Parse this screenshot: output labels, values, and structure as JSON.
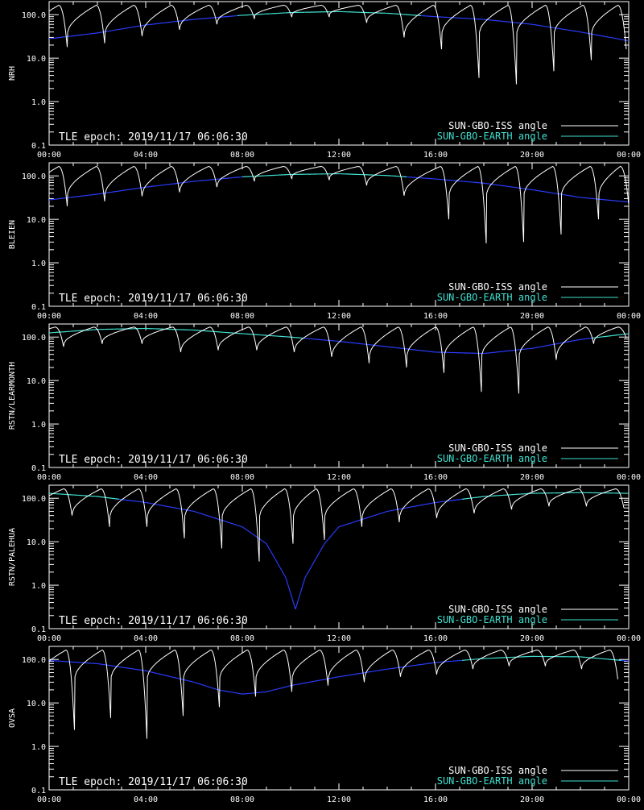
{
  "chart_data": [
    {
      "type": "line",
      "station": "NRH",
      "xlabel_ticks": [
        "00:00",
        "04:00",
        "08:00",
        "12:00",
        "16:00",
        "20:00",
        "00:00"
      ],
      "yticks": [
        "100.0",
        "10.0",
        "1.0",
        "0.1"
      ],
      "ylim": [
        0.1,
        200
      ],
      "yscale": "log",
      "epoch": "TLE epoch: 2019/11/17 06:06:30",
      "legend": [
        "SUN-GBO-ISS angle",
        "SUN-GBO-EARTH angle"
      ],
      "series": [
        {
          "name": "SUN-GBO-EARTH angle",
          "x": [
            0,
            2,
            4,
            6,
            8,
            10,
            12,
            14,
            16,
            18,
            20,
            22,
            24
          ],
          "y": [
            28,
            38,
            58,
            78,
            97,
            112,
            118,
            108,
            90,
            78,
            60,
            40,
            25
          ]
        },
        {
          "name": "SUN-GBO-ISS angle",
          "orbits": [
            {
              "t": 0.75,
              "min": 18
            },
            {
              "t": 2.3,
              "min": 22
            },
            {
              "t": 3.85,
              "min": 32
            },
            {
              "t": 5.4,
              "min": 45
            },
            {
              "t": 6.95,
              "min": 60
            },
            {
              "t": 8.5,
              "min": 80
            },
            {
              "t": 10.05,
              "min": 88
            },
            {
              "t": 11.6,
              "min": 88
            },
            {
              "t": 13.15,
              "min": 65
            },
            {
              "t": 14.7,
              "min": 30
            },
            {
              "t": 16.25,
              "min": 16
            },
            {
              "t": 17.8,
              "min": 3.5
            },
            {
              "t": 19.35,
              "min": 2.5
            },
            {
              "t": 20.9,
              "min": 5
            },
            {
              "t": 22.45,
              "min": 9
            },
            {
              "t": 23.9,
              "min": 16
            }
          ],
          "max": 165
        }
      ]
    },
    {
      "type": "line",
      "station": "BLEIEN",
      "xlabel_ticks": [
        "00:00",
        "04:00",
        "08:00",
        "12:00",
        "16:00",
        "20:00",
        "00:00"
      ],
      "yticks": [
        "100.0",
        "10.0",
        "1.0",
        "0.1"
      ],
      "ylim": [
        0.1,
        200
      ],
      "yscale": "log",
      "epoch": "TLE epoch: 2019/11/17 06:06:30",
      "legend": [
        "SUN-GBO-ISS angle",
        "SUN-GBO-EARTH angle"
      ],
      "series": [
        {
          "name": "SUN-GBO-EARTH angle",
          "x": [
            0,
            2,
            4,
            6,
            8,
            10,
            12,
            14,
            16,
            18,
            20,
            22,
            24
          ],
          "y": [
            28,
            38,
            55,
            75,
            95,
            108,
            112,
            102,
            85,
            68,
            48,
            32,
            25
          ]
        },
        {
          "name": "SUN-GBO-ISS angle",
          "orbits": [
            {
              "t": 0.75,
              "min": 20
            },
            {
              "t": 2.3,
              "min": 26
            },
            {
              "t": 3.85,
              "min": 34
            },
            {
              "t": 5.4,
              "min": 42
            },
            {
              "t": 6.95,
              "min": 55
            },
            {
              "t": 8.5,
              "min": 75
            },
            {
              "t": 10.05,
              "min": 85
            },
            {
              "t": 11.6,
              "min": 80
            },
            {
              "t": 13.15,
              "min": 60
            },
            {
              "t": 14.7,
              "min": 35
            },
            {
              "t": 16.55,
              "min": 10
            },
            {
              "t": 18.1,
              "min": 2.8
            },
            {
              "t": 19.65,
              "min": 3
            },
            {
              "t": 21.2,
              "min": 4.5
            },
            {
              "t": 22.75,
              "min": 10
            },
            {
              "t": 24,
              "min": 22
            }
          ],
          "max": 165
        }
      ]
    },
    {
      "type": "line",
      "station": "RSTN/LEARMONTH",
      "xlabel_ticks": [
        "00:00",
        "04:00",
        "08:00",
        "12:00",
        "16:00",
        "20:00",
        "00:00"
      ],
      "yticks": [
        "100.0",
        "10.0",
        "1.0",
        "0.1"
      ],
      "ylim": [
        0.1,
        200
      ],
      "yscale": "log",
      "epoch": "TLE epoch: 2019/11/17 06:06:30",
      "legend": [
        "SUN-GBO-ISS angle",
        "SUN-GBO-EARTH angle"
      ],
      "series": [
        {
          "name": "SUN-GBO-EARTH angle",
          "x": [
            0,
            2,
            4,
            6,
            8,
            10,
            12,
            14,
            16,
            18,
            20,
            22,
            24
          ],
          "y": [
            125,
            150,
            158,
            145,
            120,
            100,
            80,
            60,
            45,
            42,
            55,
            88,
            120
          ]
        },
        {
          "name": "SUN-GBO-ISS angle",
          "orbits": [
            {
              "t": 0.6,
              "min": 60
            },
            {
              "t": 2.2,
              "min": 70
            },
            {
              "t": 3.85,
              "min": 70
            },
            {
              "t": 5.45,
              "min": 45
            },
            {
              "t": 7,
              "min": 50
            },
            {
              "t": 8.6,
              "min": 50
            },
            {
              "t": 10.15,
              "min": 45
            },
            {
              "t": 11.7,
              "min": 35
            },
            {
              "t": 13.25,
              "min": 25
            },
            {
              "t": 14.8,
              "min": 20
            },
            {
              "t": 16.35,
              "min": 15
            },
            {
              "t": 17.9,
              "min": 5.5
            },
            {
              "t": 19.45,
              "min": 5
            },
            {
              "t": 21,
              "min": 30
            },
            {
              "t": 22.55,
              "min": 70
            },
            {
              "t": 23.9,
              "min": 95
            }
          ],
          "max": 170
        }
      ]
    },
    {
      "type": "line",
      "station": "RSTN/PALEHUA",
      "xlabel_ticks": [
        "00:00",
        "04:00",
        "08:00",
        "12:00",
        "16:00",
        "20:00",
        "00:00"
      ],
      "yticks": [
        "100.0",
        "10.0",
        "1.0",
        "0.1"
      ],
      "ylim": [
        0.1,
        200
      ],
      "yscale": "log",
      "epoch": "TLE epoch: 2019/11/17 06:06:30",
      "legend": [
        "SUN-GBO-ISS angle",
        "SUN-GBO-EARTH angle"
      ],
      "series": [
        {
          "name": "SUN-GBO-EARTH angle",
          "x": [
            0,
            2,
            4,
            6,
            8,
            9,
            9.8,
            10.2,
            10.6,
            11.4,
            12,
            14,
            16,
            18,
            20,
            22,
            24
          ],
          "y": [
            130,
            110,
            80,
            50,
            22,
            9,
            1.5,
            0.28,
            1.5,
            9,
            22,
            50,
            80,
            110,
            130,
            135,
            130
          ]
        },
        {
          "name": "SUN-GBO-ISS angle",
          "orbits": [
            {
              "t": 0.95,
              "min": 40
            },
            {
              "t": 2.5,
              "min": 22
            },
            {
              "t": 4.05,
              "min": 22
            },
            {
              "t": 5.6,
              "min": 12
            },
            {
              "t": 7.15,
              "min": 7
            },
            {
              "t": 8.7,
              "min": 3.5
            },
            {
              "t": 10.1,
              "min": 9
            },
            {
              "t": 11.4,
              "min": 11
            },
            {
              "t": 12.95,
              "min": 22
            },
            {
              "t": 14.5,
              "min": 28
            },
            {
              "t": 16.05,
              "min": 35
            },
            {
              "t": 17.6,
              "min": 45
            },
            {
              "t": 19.15,
              "min": 55
            },
            {
              "t": 20.7,
              "min": 65
            },
            {
              "t": 22.25,
              "min": 65
            },
            {
              "t": 23.8,
              "min": 60
            }
          ],
          "max": 165
        }
      ]
    },
    {
      "type": "line",
      "station": "OVSA",
      "xlabel_ticks": [
        "00:00",
        "04:00",
        "08:00",
        "12:00",
        "16:00",
        "20:00",
        "00:00"
      ],
      "yticks": [
        "100.0",
        "10.0",
        "1.0",
        "0.1"
      ],
      "ylim": [
        0.1,
        200
      ],
      "yscale": "log",
      "epoch": "TLE epoch: 2019/11/17 06:06:30",
      "legend": [
        "SUN-GBO-ISS angle",
        "SUN-GBO-EARTH angle"
      ],
      "series": [
        {
          "name": "SUN-GBO-EARTH angle",
          "x": [
            0,
            2,
            4,
            6,
            7,
            8,
            9,
            10,
            12,
            14,
            16,
            18,
            20,
            22,
            24
          ],
          "y": [
            95,
            80,
            55,
            30,
            20,
            16,
            18,
            25,
            40,
            60,
            85,
            105,
            118,
            115,
            92
          ]
        },
        {
          "name": "SUN-GBO-ISS angle",
          "orbits": [
            {
              "t": 1.05,
              "min": 2.4
            },
            {
              "t": 2.55,
              "min": 4.5
            },
            {
              "t": 4.05,
              "min": 1.5
            },
            {
              "t": 5.55,
              "min": 5
            },
            {
              "t": 7.05,
              "min": 8
            },
            {
              "t": 8.55,
              "min": 14
            },
            {
              "t": 10.05,
              "min": 18
            },
            {
              "t": 11.55,
              "min": 25
            },
            {
              "t": 13.05,
              "min": 30
            },
            {
              "t": 14.55,
              "min": 40
            },
            {
              "t": 16.05,
              "min": 45
            },
            {
              "t": 17.55,
              "min": 60
            },
            {
              "t": 19.05,
              "min": 70
            },
            {
              "t": 20.55,
              "min": 70
            },
            {
              "t": 22.05,
              "min": 60
            },
            {
              "t": 23.55,
              "min": 35
            }
          ],
          "max": 165
        }
      ]
    }
  ]
}
